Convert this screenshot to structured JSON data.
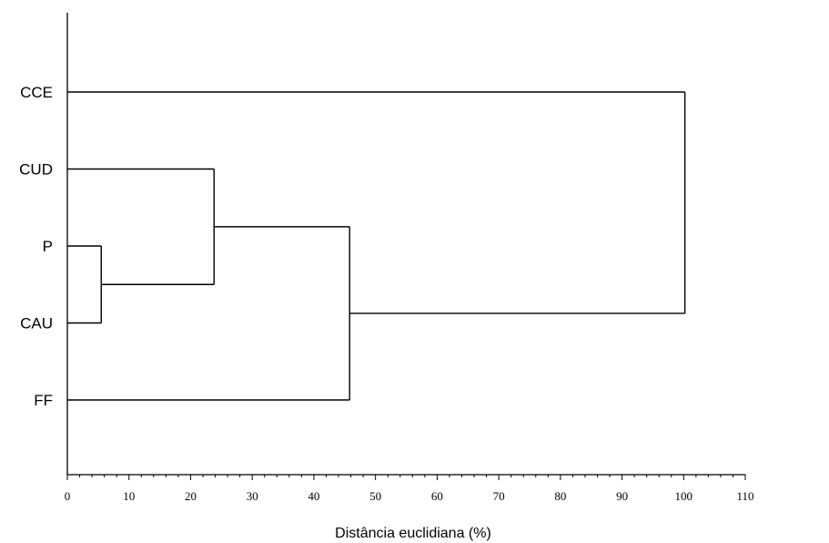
{
  "chart_data": {
    "type": "dendrogram",
    "orientation": "horizontal",
    "xlabel": "Distância euclidiana (%)",
    "xlim": [
      0,
      110
    ],
    "x_ticks": [
      0,
      10,
      20,
      30,
      40,
      50,
      60,
      70,
      80,
      90,
      100,
      110
    ],
    "x_minor_step": 2,
    "leaves": [
      "CCE",
      "CUD",
      "P",
      "CAU",
      "FF"
    ],
    "merges": [
      {
        "left": "P",
        "right": "CAU",
        "height": 5.5
      },
      {
        "left": "CUD",
        "right": "P+CAU",
        "height": 23.8
      },
      {
        "left": "CUD+P+CAU",
        "right": "FF",
        "height": 45.8
      },
      {
        "left": "CCE",
        "right": "CUD+P+CAU+FF",
        "height": 100.2
      }
    ],
    "grid": false,
    "line_color": "#000000"
  }
}
